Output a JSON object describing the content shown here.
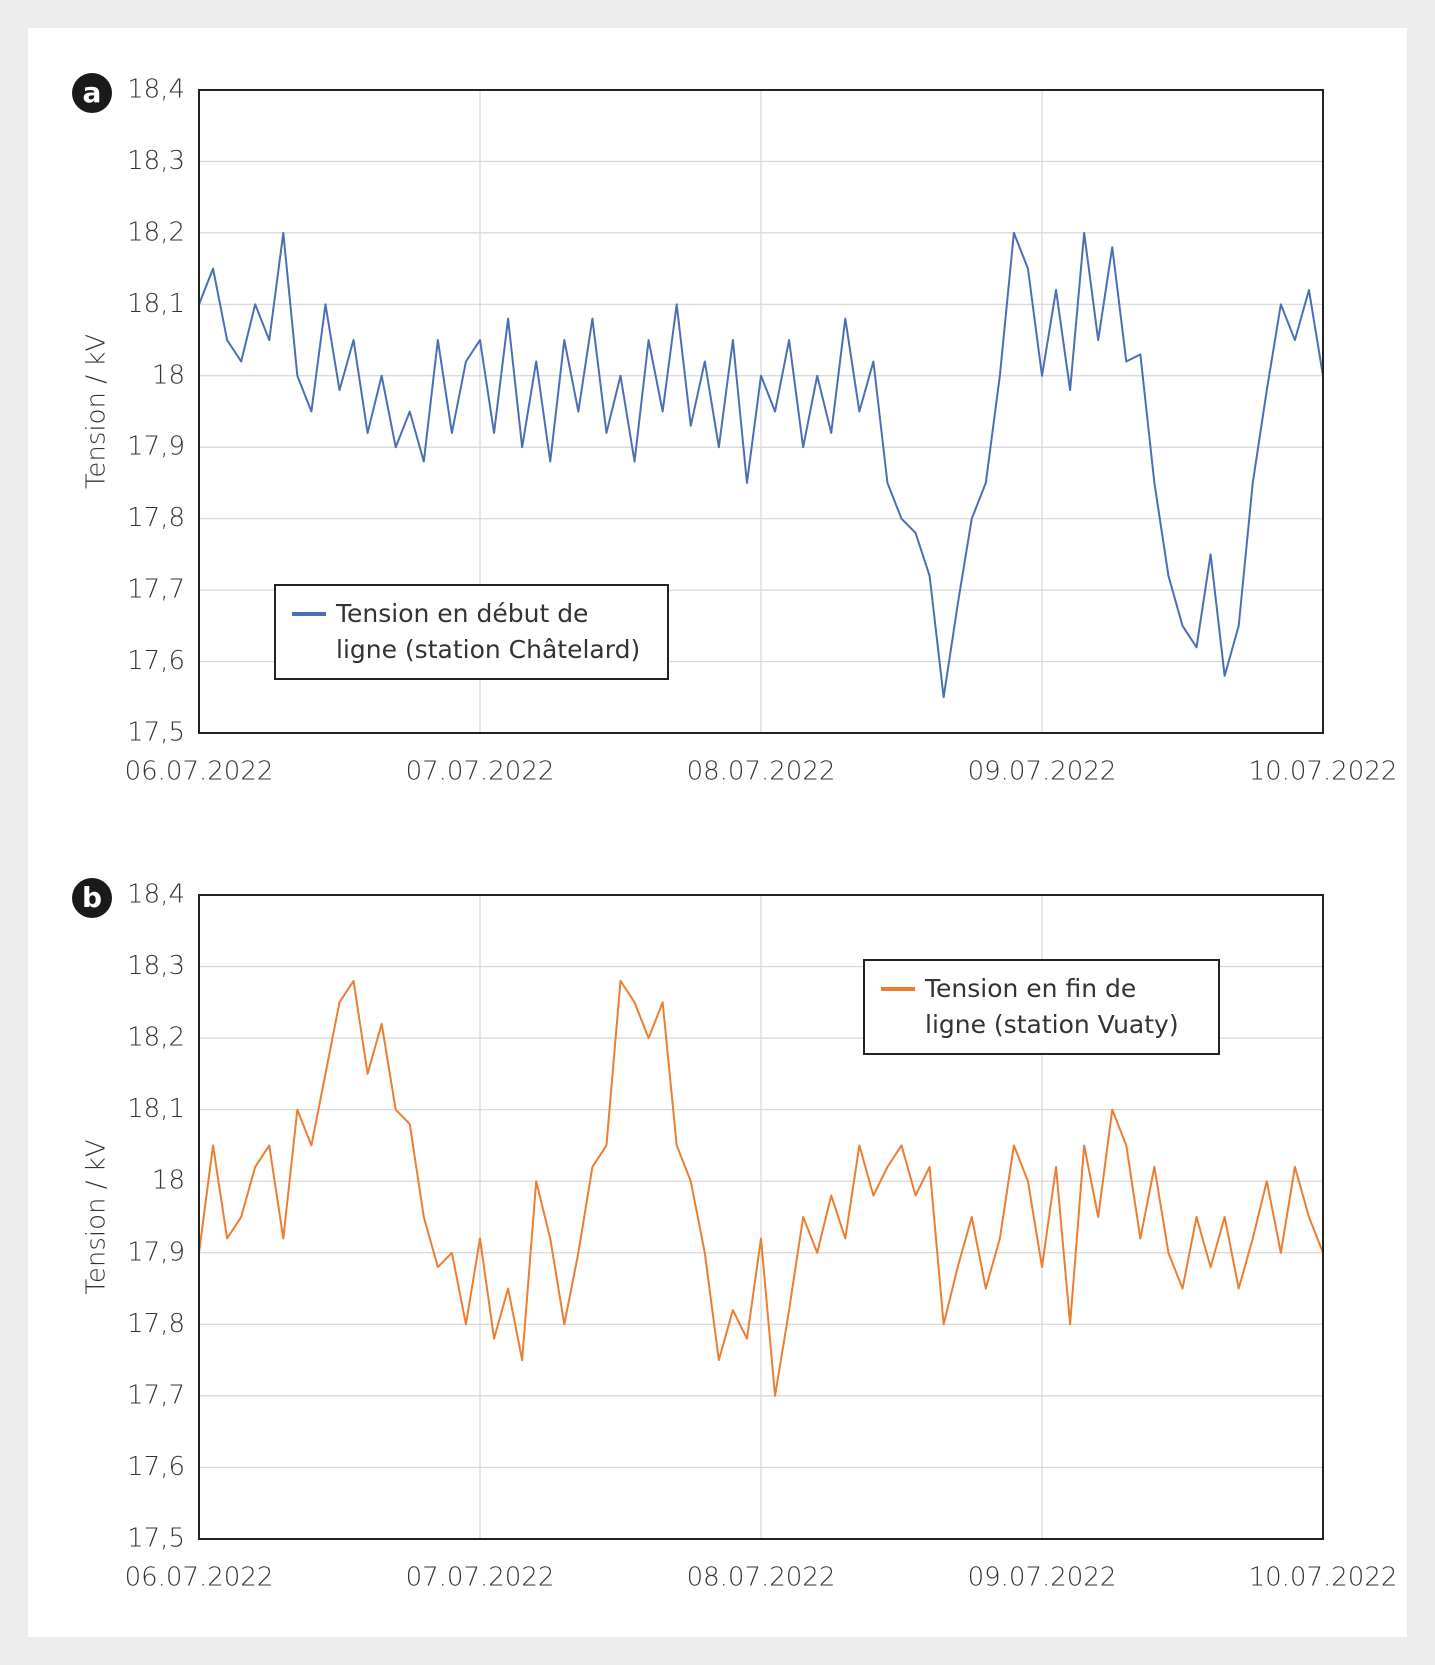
{
  "chart_data": [
    {
      "type": "line",
      "panel": "a",
      "ylabel": "Tension / kV",
      "x": [
        0,
        0.05,
        0.1,
        0.15,
        0.2,
        0.25,
        0.3,
        0.35,
        0.4,
        0.45,
        0.5,
        0.55,
        0.6,
        0.65,
        0.7,
        0.75,
        0.8,
        0.85,
        0.9,
        0.95,
        1,
        1.05,
        1.1,
        1.15,
        1.2,
        1.25,
        1.3,
        1.35,
        1.4,
        1.45,
        1.5,
        1.55,
        1.6,
        1.65,
        1.7,
        1.75,
        1.8,
        1.85,
        1.9,
        1.95,
        2,
        2.05,
        2.1,
        2.15,
        2.2,
        2.25,
        2.3,
        2.35,
        2.4,
        2.45,
        2.5,
        2.55,
        2.6,
        2.65,
        2.7,
        2.75,
        2.8,
        2.85,
        2.9,
        2.95,
        3,
        3.05,
        3.1,
        3.15,
        3.2,
        3.25,
        3.3,
        3.35,
        3.4,
        3.45,
        3.5,
        3.55,
        3.6,
        3.65,
        3.7,
        3.75,
        3.8,
        3.85,
        3.9,
        3.95,
        4
      ],
      "series": [
        {
          "name": "Tension en début de ligne (station Châtelard)",
          "color": "#4a6fb5",
          "values": [
            18.1,
            18.15,
            18.05,
            18.02,
            18.1,
            18.05,
            18.2,
            18.0,
            17.95,
            18.1,
            17.98,
            18.05,
            17.92,
            18.0,
            17.9,
            17.95,
            17.88,
            18.05,
            17.92,
            18.02,
            18.05,
            17.92,
            18.08,
            17.9,
            18.02,
            17.88,
            18.05,
            17.95,
            18.08,
            17.92,
            18.0,
            17.88,
            18.05,
            17.95,
            18.1,
            17.93,
            18.02,
            17.9,
            18.05,
            17.85,
            18.0,
            17.95,
            18.05,
            17.9,
            18.0,
            17.92,
            18.08,
            17.95,
            18.02,
            17.85,
            17.8,
            17.78,
            17.72,
            17.55,
            17.68,
            17.8,
            17.85,
            18.0,
            18.2,
            18.15,
            18.0,
            18.12,
            17.98,
            18.2,
            18.05,
            18.18,
            18.02,
            18.03,
            17.85,
            17.72,
            17.65,
            17.62,
            17.75,
            17.58,
            17.65,
            17.85,
            17.98,
            18.1,
            18.05,
            18.12,
            18.0
          ]
        }
      ],
      "xlim": [
        0,
        4
      ],
      "xticks": [
        {
          "value": 0,
          "label": "06.07.2022"
        },
        {
          "value": 1,
          "label": "07.07.2022"
        },
        {
          "value": 2,
          "label": "08.07.2022"
        },
        {
          "value": 3,
          "label": "09.07.2022"
        },
        {
          "value": 4,
          "label": "10.07.2022"
        }
      ],
      "ylim": [
        17.5,
        18.4
      ],
      "yticks": [
        {
          "value": 17.5,
          "label": "17,5"
        },
        {
          "value": 17.6,
          "label": "17,6"
        },
        {
          "value": 17.7,
          "label": "17,7"
        },
        {
          "value": 17.8,
          "label": "17,8"
        },
        {
          "value": 17.9,
          "label": "17,9"
        },
        18,
        {
          "value": 18.1,
          "label": "18,1"
        },
        {
          "value": 18.2,
          "label": "18,2"
        },
        {
          "value": 18.3,
          "label": "18,3"
        },
        {
          "value": 18.4,
          "label": "18,4"
        }
      ],
      "grid": true,
      "legend": "lower-left"
    },
    {
      "type": "line",
      "panel": "b",
      "ylabel": "Tension / kV",
      "x": [
        0,
        0.05,
        0.1,
        0.15,
        0.2,
        0.25,
        0.3,
        0.35,
        0.4,
        0.45,
        0.5,
        0.55,
        0.6,
        0.65,
        0.7,
        0.75,
        0.8,
        0.85,
        0.9,
        0.95,
        1,
        1.05,
        1.1,
        1.15,
        1.2,
        1.25,
        1.3,
        1.35,
        1.4,
        1.45,
        1.5,
        1.55,
        1.6,
        1.65,
        1.7,
        1.75,
        1.8,
        1.85,
        1.9,
        1.95,
        2,
        2.05,
        2.1,
        2.15,
        2.2,
        2.25,
        2.3,
        2.35,
        2.4,
        2.45,
        2.5,
        2.55,
        2.6,
        2.65,
        2.7,
        2.75,
        2.8,
        2.85,
        2.9,
        2.95,
        3,
        3.05,
        3.1,
        3.15,
        3.2,
        3.25,
        3.3,
        3.35,
        3.4,
        3.45,
        3.5,
        3.55,
        3.6,
        3.65,
        3.7,
        3.75,
        3.8,
        3.85,
        3.9,
        3.95,
        4
      ],
      "series": [
        {
          "name": "Tension en fin de ligne (station Vuaty)",
          "color": "#ed7d31",
          "values": [
            17.9,
            18.05,
            17.92,
            17.95,
            18.02,
            18.05,
            17.92,
            18.1,
            18.05,
            18.15,
            18.25,
            18.28,
            18.15,
            18.22,
            18.1,
            18.08,
            17.95,
            17.88,
            17.9,
            17.8,
            17.92,
            17.78,
            17.85,
            17.75,
            18.0,
            17.92,
            17.8,
            17.9,
            18.02,
            18.05,
            18.28,
            18.25,
            18.2,
            18.25,
            18.05,
            18.0,
            17.9,
            17.75,
            17.82,
            17.78,
            17.92,
            17.7,
            17.82,
            17.95,
            17.9,
            17.98,
            17.92,
            18.05,
            17.98,
            18.02,
            18.05,
            17.98,
            18.02,
            17.8,
            17.88,
            17.95,
            17.85,
            17.92,
            18.05,
            18.0,
            17.88,
            18.02,
            17.8,
            18.05,
            17.95,
            18.1,
            18.05,
            17.92,
            18.02,
            17.9,
            17.85,
            17.95,
            17.88,
            17.95,
            17.85,
            17.92,
            18.0,
            17.9,
            18.02,
            17.95,
            17.9
          ]
        }
      ],
      "xlim": [
        0,
        4
      ],
      "xticks": [
        {
          "value": 0,
          "label": "06.07.2022"
        },
        {
          "value": 1,
          "label": "07.07.2022"
        },
        {
          "value": 2,
          "label": "08.07.2022"
        },
        {
          "value": 3,
          "label": "09.07.2022"
        },
        {
          "value": 4,
          "label": "10.07.2022"
        }
      ],
      "ylim": [
        17.5,
        18.4
      ],
      "yticks": [
        {
          "value": 17.5,
          "label": "17,5"
        },
        {
          "value": 17.6,
          "label": "17,6"
        },
        {
          "value": 17.7,
          "label": "17,7"
        },
        {
          "value": 17.8,
          "label": "17,8"
        },
        {
          "value": 17.9,
          "label": "17,9"
        },
        18,
        {
          "value": 18.1,
          "label": "18,1"
        },
        {
          "value": 18.2,
          "label": "18,2"
        },
        {
          "value": 18.3,
          "label": "18,3"
        },
        {
          "value": 18.4,
          "label": "18,4"
        }
      ],
      "grid": true,
      "legend": "upper-right"
    }
  ]
}
